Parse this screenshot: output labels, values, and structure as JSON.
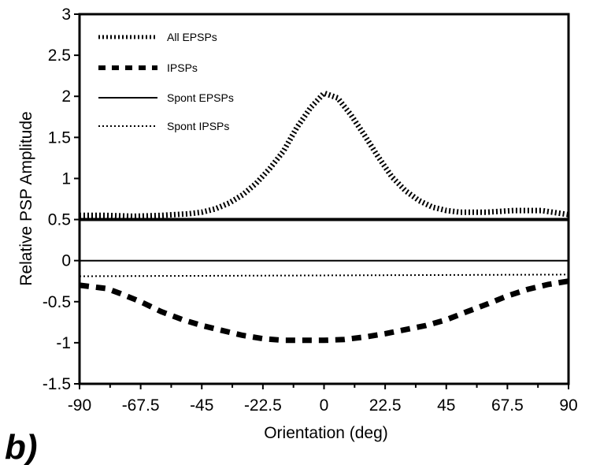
{
  "chart_data": {
    "type": "line",
    "title": "",
    "panel_label": "b)",
    "xlabel": "Orientation (deg)",
    "ylabel": "Relative PSP Amplitude",
    "xlim": [
      -90,
      90
    ],
    "ylim": [
      -1.5,
      3
    ],
    "x_ticks": [
      "-90",
      "-67.5",
      "-45",
      "-22.5",
      "0",
      "22.5",
      "45",
      "67.5",
      "90"
    ],
    "y_ticks": [
      "3",
      "2.5",
      "2",
      "1.5",
      "1",
      "0.5",
      "0",
      "-0.5",
      "-1",
      "-1.5"
    ],
    "grid": false,
    "legend_position": "top-left",
    "panel_divider_y": 0.5,
    "series": [
      {
        "name": "All EPSPs",
        "style": "hatched",
        "x": [
          -90,
          -80,
          -70,
          -60,
          -50,
          -45,
          -40,
          -35,
          -30,
          -25,
          -20,
          -15,
          -10,
          -5,
          0,
          5,
          10,
          15,
          20,
          25,
          30,
          35,
          40,
          45,
          50,
          60,
          70,
          80,
          90
        ],
        "y": [
          0.55,
          0.55,
          0.54,
          0.55,
          0.57,
          0.59,
          0.63,
          0.7,
          0.8,
          0.94,
          1.12,
          1.33,
          1.62,
          1.86,
          2.04,
          1.98,
          1.77,
          1.52,
          1.26,
          1.02,
          0.85,
          0.73,
          0.65,
          0.61,
          0.59,
          0.59,
          0.61,
          0.61,
          0.56
        ]
      },
      {
        "name": "IPSPs",
        "style": "dashed-thick",
        "x": [
          -90,
          -80,
          -75,
          -67.5,
          -60,
          -52,
          -45,
          -37.5,
          -30,
          -22.5,
          -15,
          -7.5,
          0,
          7.5,
          15,
          22.5,
          30,
          37.5,
          45,
          52,
          60,
          67.5,
          75,
          82.5,
          90
        ],
        "y": [
          -0.3,
          -0.34,
          -0.4,
          -0.5,
          -0.62,
          -0.72,
          -0.79,
          -0.85,
          -0.91,
          -0.95,
          -0.97,
          -0.97,
          -0.97,
          -0.96,
          -0.93,
          -0.89,
          -0.84,
          -0.79,
          -0.72,
          -0.63,
          -0.53,
          -0.43,
          -0.35,
          -0.29,
          -0.25
        ]
      },
      {
        "name": "Spont EPSPs",
        "style": "solid",
        "x": [
          -90,
          90
        ],
        "y": [
          0,
          0
        ]
      },
      {
        "name": "Spont IPSPs",
        "style": "dotted",
        "x": [
          -90,
          90
        ],
        "y": [
          -0.19,
          -0.17
        ]
      }
    ]
  },
  "colors": {
    "line": "#000000",
    "background": "#ffffff"
  }
}
